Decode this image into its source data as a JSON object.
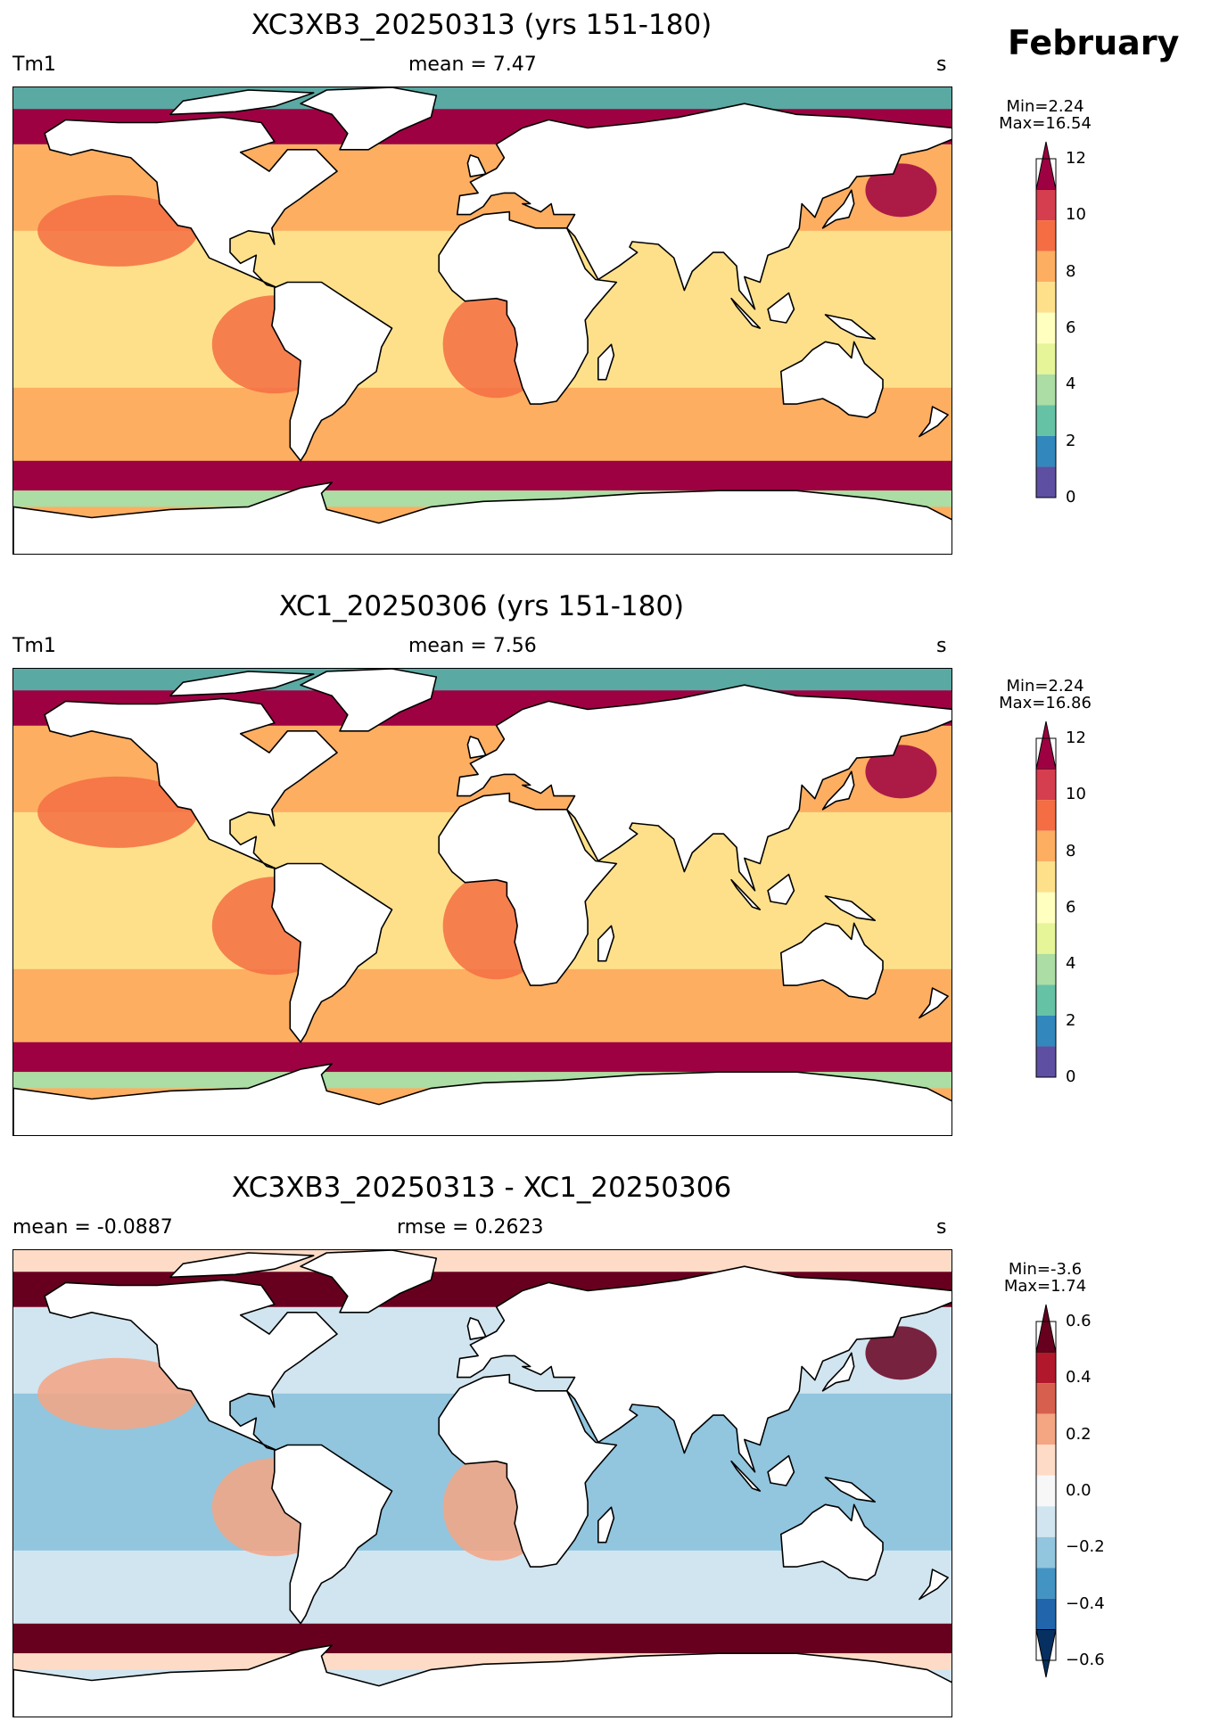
{
  "month": "February",
  "panels": [
    {
      "title": "XC3XB3_20250313 (yrs 151-180)",
      "left_label": "Tm1",
      "center_label": "mean = 7.47",
      "right_label": "s",
      "colorbar": {
        "min_text": "Min=2.24",
        "max_text": "Max=16.54",
        "ticks": [
          "12",
          "10",
          "8",
          "6",
          "4",
          "2",
          "0"
        ],
        "colors": [
          "#9e0142",
          "#d53e4f",
          "#f46d43",
          "#fdae61",
          "#fee08b",
          "#ffffbf",
          "#e6f598",
          "#abdda4",
          "#66c2a5",
          "#3288bd",
          "#5e4fa2"
        ]
      },
      "palette": {
        "land": "#ffffff",
        "ocean": "#fdae61",
        "subtropic": "#fee08b",
        "highlat": "#9e0142",
        "arctic": "#5aa9a3",
        "coast": "#f46d43",
        "shelf": "#abdda4"
      }
    },
    {
      "title": "XC1_20250306 (yrs 151-180)",
      "left_label": "Tm1",
      "center_label": "mean = 7.56",
      "right_label": "s",
      "colorbar": {
        "min_text": "Min=2.24",
        "max_text": "Max=16.86",
        "ticks": [
          "12",
          "10",
          "8",
          "6",
          "4",
          "2",
          "0"
        ],
        "colors": [
          "#9e0142",
          "#d53e4f",
          "#f46d43",
          "#fdae61",
          "#fee08b",
          "#ffffbf",
          "#e6f598",
          "#abdda4",
          "#66c2a5",
          "#3288bd",
          "#5e4fa2"
        ]
      },
      "palette": {
        "land": "#ffffff",
        "ocean": "#fdae61",
        "subtropic": "#fee08b",
        "highlat": "#9e0142",
        "arctic": "#5aa9a3",
        "coast": "#f46d43",
        "shelf": "#abdda4"
      }
    },
    {
      "title": "XC3XB3_20250313 - XC1_20250306",
      "left_label": "mean = -0.0887",
      "center_label": "rmse = 0.2623",
      "right_label": "s",
      "colorbar": {
        "min_text": "Min=-3.6",
        "max_text": "Max=1.74",
        "ticks": [
          "0.6",
          "0.4",
          "0.2",
          "0.0",
          "−0.2",
          "−0.4",
          "−0.6"
        ],
        "colors": [
          "#67001f",
          "#b2182b",
          "#d6604d",
          "#f4a582",
          "#fddbc7",
          "#f7f7f7",
          "#d1e5f0",
          "#92c5de",
          "#4393c3",
          "#2166ac",
          "#053061"
        ]
      },
      "palette": {
        "land": "#ffffff",
        "ocean": "#d1e5f0",
        "subtropic": "#92c5de",
        "highlat": "#67001f",
        "arctic": "#fddbc7",
        "coast": "#f4a582",
        "shelf": "#fddbc7"
      }
    }
  ]
}
